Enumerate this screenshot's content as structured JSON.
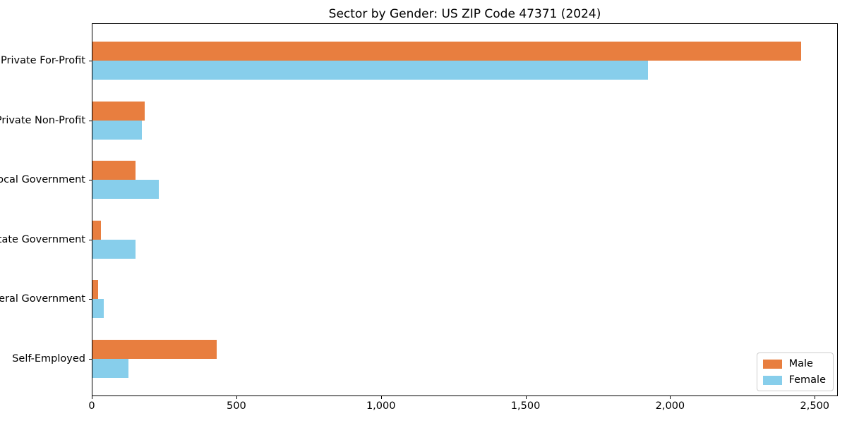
{
  "title": "Sector by Gender: US ZIP Code 47371 (2024)",
  "colors": {
    "male": "#e87e3f",
    "female": "#87ceeb",
    "spine": "#000000",
    "legend_border": "#cccccc",
    "background": "#ffffff"
  },
  "chart_data": {
    "type": "bar",
    "orientation": "horizontal",
    "title": "Sector by Gender: US ZIP Code 47371 (2024)",
    "categories": [
      "Private For-Profit",
      "Private Non-Profit",
      "Local Government",
      "State Government",
      "Federal Government",
      "Self-Employed"
    ],
    "series": [
      {
        "name": "Male",
        "color": "#e87e3f",
        "values": [
          2450,
          180,
          150,
          30,
          20,
          430
        ]
      },
      {
        "name": "Female",
        "color": "#87ceeb",
        "values": [
          1920,
          170,
          230,
          150,
          40,
          125
        ]
      }
    ],
    "xlabel": "",
    "ylabel": "",
    "xlim": [
      0,
      2575
    ],
    "xticks": [
      0,
      500,
      1000,
      1500,
      2000,
      2500
    ],
    "xtick_labels": [
      "0",
      "500",
      "1,000",
      "1,500",
      "2,000",
      "2,500"
    ],
    "grid": false,
    "legend_position": "lower right"
  },
  "legend": {
    "items": [
      {
        "label": "Male"
      },
      {
        "label": "Female"
      }
    ]
  }
}
